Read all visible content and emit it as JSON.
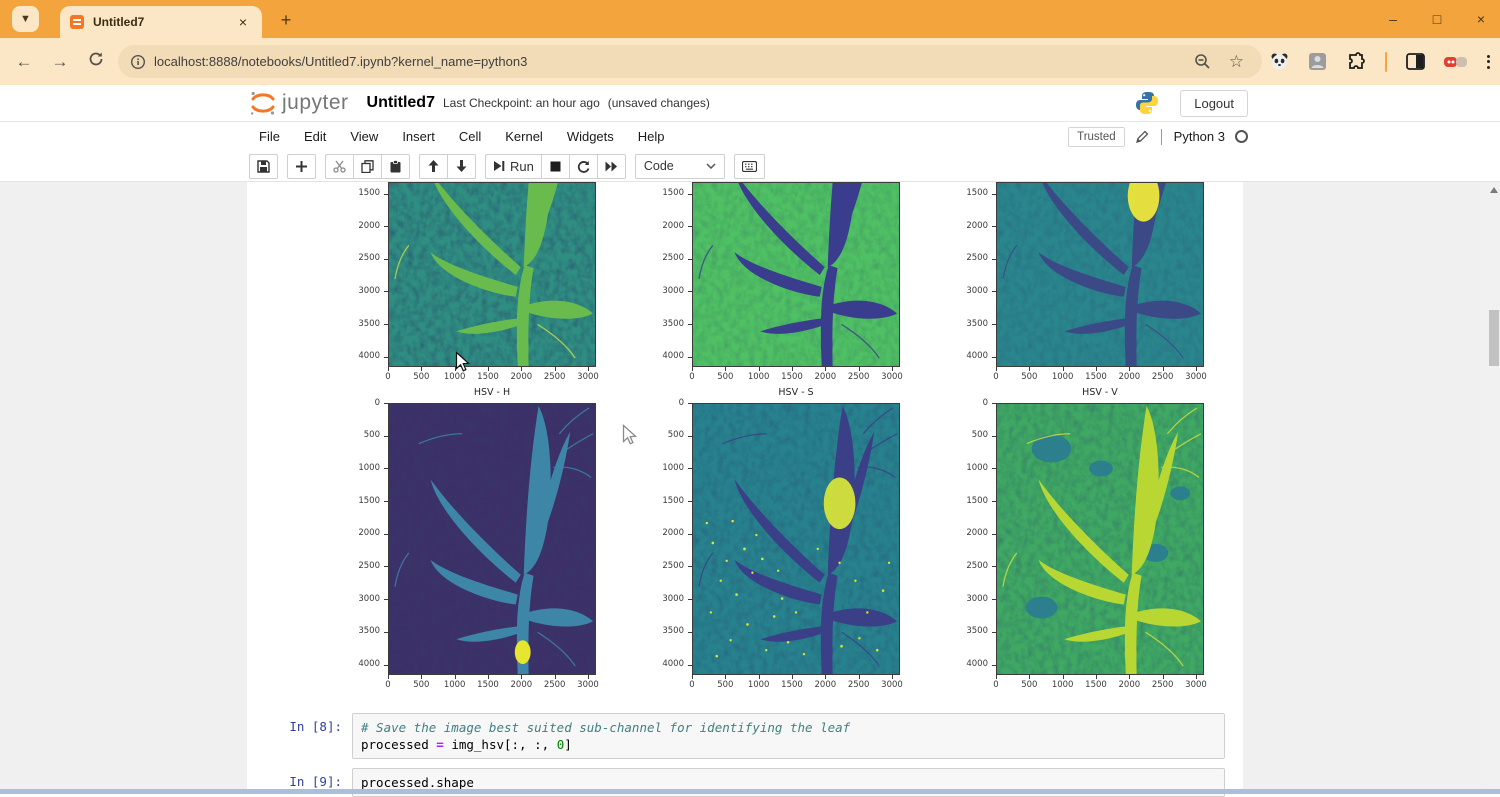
{
  "browser": {
    "tab": {
      "title": "Untitled7",
      "close_glyph": "×"
    },
    "new_tab_glyph": "+",
    "url": "localhost:8888/notebooks/Untitled7.ipynb?kernel_name=python3",
    "window_controls": {
      "minimize": "–",
      "maximize": "□",
      "close": "×"
    },
    "theme": {
      "tabbar_orange": "#F3A43C",
      "toolbar_cream": "#FBE7C6",
      "url_pill": "#F2DCB7"
    }
  },
  "header": {
    "logo_text": "jupyter",
    "title": "Untitled7",
    "checkpoint": "Last Checkpoint: an hour ago",
    "unsaved": "(unsaved changes)",
    "logout_label": "Logout"
  },
  "menubar": {
    "items": [
      "File",
      "Edit",
      "View",
      "Insert",
      "Cell",
      "Kernel",
      "Widgets",
      "Help"
    ],
    "trusted_label": "Trusted",
    "kernel_name": "Python 3"
  },
  "toolbar": {
    "run_label": "Run",
    "cell_type": "Code"
  },
  "notebook": {
    "figures": {
      "x_ticks": [
        0,
        500,
        1000,
        1500,
        2000,
        2500,
        3000
      ],
      "row1": {
        "y_ticks": [
          1500,
          2000,
          2500,
          3000,
          3500,
          4000
        ],
        "plots": [
          {
            "id": "row1-plot1",
            "title": "",
            "colors": {
              "bg": "#2F8E82",
              "plant": "#69BB4E",
              "twig": "#C9DB3E",
              "texop": 0.5
            }
          },
          {
            "id": "row1-plot2",
            "title": "",
            "colors": {
              "bg": "#4FC063",
              "plant": "#3A3D8D",
              "texop": 0.22
            }
          },
          {
            "id": "row1-plot3",
            "title": "",
            "colors": {
              "bg": "#2A868D",
              "plant": "#3B4A87",
              "glowA": "#EDE63A",
              "texop": 0.26
            }
          }
        ]
      },
      "row2": {
        "y_ticks": [
          0,
          500,
          1000,
          1500,
          2000,
          2500,
          3000,
          3500,
          4000
        ],
        "plots": [
          {
            "id": "hsv-h",
            "title": "HSV - H",
            "colors": {
              "bg": "#3D3068",
              "plant": "#3E86A8",
              "glowB": "#E8E531",
              "texop": 0.3
            }
          },
          {
            "id": "hsv-s",
            "title": "HSV - S",
            "colors": {
              "bg": "#27828E",
              "plant": "#3A3F88",
              "glowA": "#D5E43A",
              "speck": "#E0E434",
              "texop": 0.34
            }
          },
          {
            "id": "hsv-v",
            "title": "HSV - V",
            "colors": {
              "bg": "#3FA863",
              "plant": "#B9D733",
              "twig": "#CFE23A",
              "patch": "#2C7F8C",
              "texop": 0.3
            }
          }
        ]
      }
    },
    "cells": [
      {
        "prompt": "In [8]:",
        "lines": [
          [
            {
              "t": "# Save the image best suited sub-channel for identifying the leaf",
              "c": "comment"
            }
          ],
          [
            {
              "t": "processed ",
              "c": "plain"
            },
            {
              "t": "=",
              "c": "op"
            },
            {
              "t": " img_hsv[:, :, ",
              "c": "plain"
            },
            {
              "t": "0",
              "c": "num"
            },
            {
              "t": "]",
              "c": "plain"
            }
          ]
        ]
      },
      {
        "prompt": "In [9]:",
        "lines": [
          [
            {
              "t": "processed.shape",
              "c": "plain"
            }
          ]
        ]
      }
    ]
  }
}
